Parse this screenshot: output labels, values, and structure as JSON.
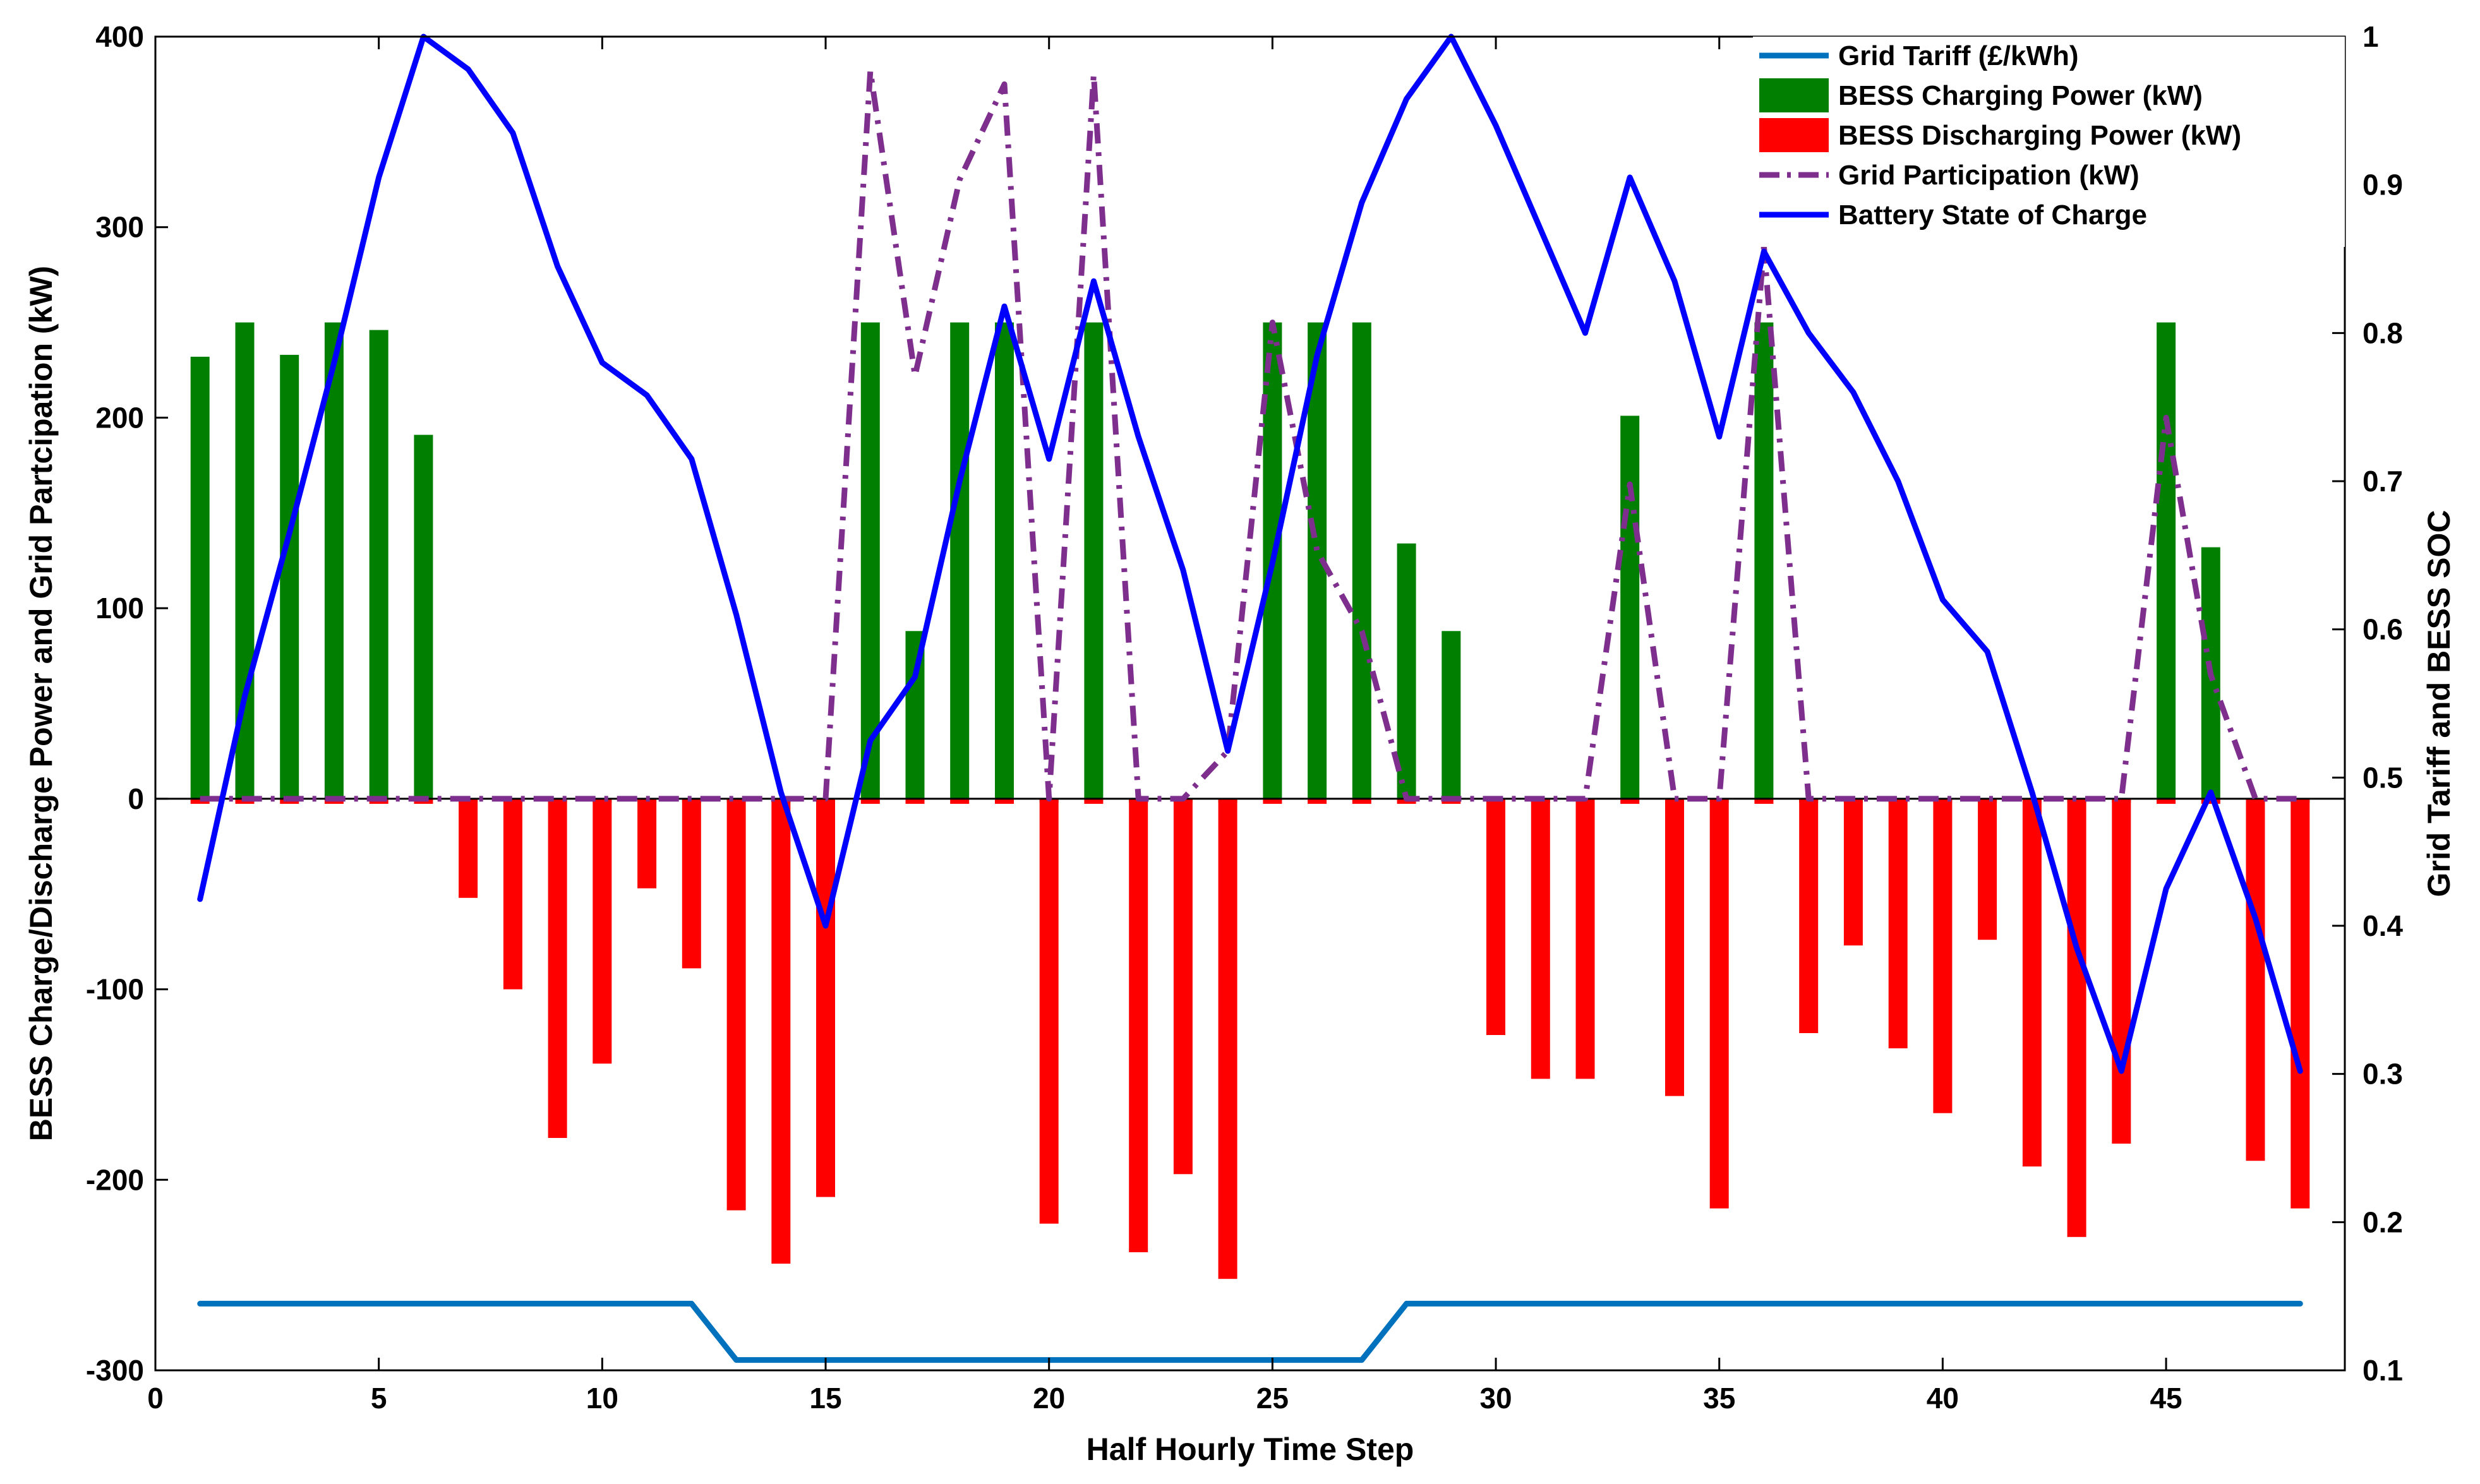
{
  "chart_data": {
    "type": "bar+line",
    "title": "",
    "xlabel": "Half Hourly Time Step",
    "ylabel_left": "BESS Charge/Discharge Power and Grid Partcipation (kW)",
    "ylabel_right": "Grid Tariff and BESS SOC",
    "xlim": [
      0,
      49
    ],
    "ylim_left": [
      -300,
      400
    ],
    "ylim_right": [
      0.1,
      1
    ],
    "x_ticks": [
      0,
      5,
      10,
      15,
      20,
      25,
      30,
      35,
      40,
      45
    ],
    "y_left_ticks": [
      -300,
      -200,
      -100,
      0,
      100,
      200,
      300,
      400
    ],
    "y_right_ticks": [
      0.1,
      0.2,
      0.3,
      0.4,
      0.5,
      0.6,
      0.7,
      0.8,
      0.9,
      1
    ],
    "x_tick_labels": [
      "0",
      "5",
      "10",
      "15",
      "20",
      "25",
      "30",
      "35",
      "40",
      "45"
    ],
    "y_left_tick_labels": [
      "-300",
      "-200",
      "-100",
      "0",
      "100",
      "200",
      "300",
      "400"
    ],
    "y_right_tick_labels": [
      "0.1",
      "0.2",
      "0.3",
      "0.4",
      "0.5",
      "0.6",
      "0.7",
      "0.8",
      "0.9",
      "1"
    ],
    "x": [
      1,
      2,
      3,
      4,
      5,
      6,
      7,
      8,
      9,
      10,
      11,
      12,
      13,
      14,
      15,
      16,
      17,
      18,
      19,
      20,
      21,
      22,
      23,
      24,
      25,
      26,
      27,
      28,
      29,
      30,
      31,
      32,
      33,
      34,
      35,
      36,
      37,
      38,
      39,
      40,
      41,
      42,
      43,
      44,
      45,
      46,
      47,
      48
    ],
    "legend_position": "top-right",
    "legend": [
      "Grid  Tariff (£/kWh)",
      "BESS Charging Power (kW)",
      "BESS Discharging Power (kW)",
      " Grid Participation (kW)",
      "Battery State of Charge"
    ],
    "series": [
      {
        "name": "Grid  Tariff (£/kWh)",
        "kind": "line",
        "axis": "right",
        "color": "#0072BD",
        "style": "solid",
        "values": [
          0.145,
          0.145,
          0.145,
          0.145,
          0.145,
          0.145,
          0.145,
          0.145,
          0.145,
          0.145,
          0.145,
          0.145,
          0.107,
          0.107,
          0.107,
          0.107,
          0.107,
          0.107,
          0.107,
          0.107,
          0.107,
          0.107,
          0.107,
          0.107,
          0.107,
          0.107,
          0.107,
          0.145,
          0.145,
          0.145,
          0.145,
          0.145,
          0.145,
          0.145,
          0.145,
          0.145,
          0.145,
          0.145,
          0.145,
          0.145,
          0.145,
          0.145,
          0.145,
          0.145,
          0.145,
          0.145,
          0.145,
          0.145
        ]
      },
      {
        "name": "BESS Charging Power (kW)",
        "kind": "bar",
        "axis": "left",
        "color": "#007F00",
        "values": [
          232,
          250,
          233,
          250,
          246,
          191,
          0,
          0,
          0,
          0,
          0,
          0,
          0,
          0,
          0,
          250,
          88,
          250,
          250,
          0,
          250,
          0,
          0,
          0,
          250,
          250,
          250,
          134,
          88,
          0,
          0,
          0,
          201,
          0,
          0,
          250,
          0,
          0,
          0,
          0,
          0,
          0,
          0,
          0,
          250,
          132,
          0,
          0
        ]
      },
      {
        "name": "BESS Discharging Power (kW)",
        "kind": "bar",
        "axis": "left",
        "color": "#FF0000",
        "values": [
          -1,
          -1,
          -1,
          -1,
          -1,
          -1,
          -52,
          -100,
          -178,
          -139,
          -47,
          -89,
          -216,
          -244,
          -209,
          -1,
          -1,
          -1,
          -1,
          -223,
          -1,
          -238,
          -197,
          -252,
          -1,
          -1,
          -1,
          -1,
          -1,
          -124,
          -147,
          -147,
          -1,
          -156,
          -215,
          -1,
          -123,
          -77,
          -131,
          -165,
          -74,
          -193,
          -230,
          -181,
          -1,
          -1,
          -190,
          -215
        ]
      },
      {
        "name": " Grid Participation (kW)",
        "kind": "line",
        "axis": "left",
        "color": "#7E2F8E",
        "style": "dashed",
        "values": [
          0,
          0,
          0,
          0,
          0,
          0,
          0,
          0,
          0,
          0,
          0,
          0,
          0,
          0,
          0,
          382,
          222,
          325,
          375,
          0,
          380,
          0,
          0,
          25,
          250,
          130,
          88,
          0,
          0,
          0,
          0,
          0,
          165,
          0,
          0,
          290,
          0,
          0,
          0,
          0,
          0,
          0,
          0,
          0,
          200,
          65,
          0,
          0
        ]
      },
      {
        "name": "Battery State of Charge",
        "kind": "line",
        "axis": "right",
        "color": "#0000FF",
        "style": "solid",
        "values": [
          0.418,
          0.555,
          0.665,
          0.78,
          0.905,
          1.0,
          0.978,
          0.935,
          0.845,
          0.78,
          0.758,
          0.715,
          0.61,
          0.49,
          0.4,
          0.525,
          0.568,
          0.7,
          0.818,
          0.715,
          0.835,
          0.73,
          0.64,
          0.518,
          0.645,
          0.785,
          0.888,
          0.958,
          1.0,
          0.94,
          0.87,
          0.8,
          0.905,
          0.835,
          0.73,
          0.855,
          0.8,
          0.76,
          0.7,
          0.62,
          0.585,
          0.49,
          0.385,
          0.302,
          0.425,
          0.49,
          0.405,
          0.302
        ]
      }
    ]
  }
}
